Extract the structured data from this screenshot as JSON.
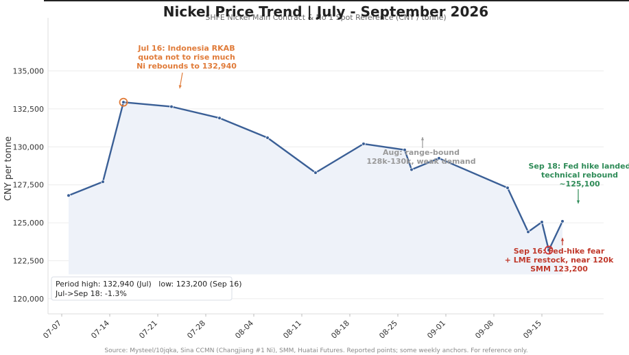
{
  "chart_data": {
    "type": "line",
    "title": "Nickel Price Trend | July - September 2026",
    "subtitle": "SHFE Nickel Main Contract & No 1 Spot Reference (CNY / tonne)",
    "ylabel": "CNY per tonne",
    "xlabel": "",
    "ylim": [
      119000,
      138500
    ],
    "xlim": [
      "2026-07-05",
      "2026-09-24"
    ],
    "yticks": [
      120000,
      122500,
      125000,
      127500,
      130000,
      132500,
      135000
    ],
    "ytick_labels": [
      "120,000",
      "122,500",
      "125,000",
      "127,500",
      "130,000",
      "132,500",
      "135,000"
    ],
    "xticks": [
      "2026-07-07",
      "2026-07-14",
      "2026-07-21",
      "2026-07-28",
      "2026-08-04",
      "2026-08-11",
      "2026-08-18",
      "2026-08-25",
      "2026-09-01",
      "2026-09-08",
      "2026-09-15"
    ],
    "xtick_labels": [
      "07-07",
      "07-14",
      "07-21",
      "07-28",
      "08-04",
      "08-11",
      "08-18",
      "08-25",
      "09-01",
      "09-08",
      "09-15"
    ],
    "series": [
      {
        "x": [
          "2026-07-08",
          "2026-07-13",
          "2026-07-16",
          "2026-07-23",
          "2026-07-30",
          "2026-08-06",
          "2026-08-13",
          "2026-08-20",
          "2026-08-26",
          "2026-08-27",
          "2026-08-31",
          "2026-09-10",
          "2026-09-13",
          "2026-09-15",
          "2026-09-16",
          "2026-09-18"
        ],
        "values": [
          126800,
          127700,
          132940,
          132650,
          131900,
          130600,
          128300,
          130200,
          129800,
          128500,
          129250,
          127300,
          124400,
          125050,
          123200,
          125100
        ]
      }
    ],
    "fill_baseline": 121600,
    "grid": true,
    "colors": {
      "line": "#3a5f96",
      "fill": "#eef2f9",
      "high_marker": "#e07b39",
      "low_marker": "#cc3333",
      "ann_orange": "#e07b39",
      "ann_gray": "#999999",
      "ann_green": "#2e8b57",
      "ann_red": "#c0392b"
    },
    "annotations": [
      {
        "id": "high",
        "lines": [
          "Jul 16: Indonesia RKAB",
          "quota not to rise much",
          "Ni rebounds to 132,940"
        ],
        "x": "2026-07-16",
        "y": 132940,
        "color": "ann_orange"
      },
      {
        "id": "aug",
        "lines": [
          "Aug: range-bound",
          "128k-130k, weak demand"
        ],
        "x": "2026-08-26",
        "y": 129800,
        "color": "ann_gray"
      },
      {
        "id": "sep18",
        "lines": [
          "Sep 18: Fed hike landed",
          "technical rebound",
          "~125,100"
        ],
        "x": "2026-09-18",
        "y": 125100,
        "color": "ann_green"
      },
      {
        "id": "sep16",
        "lines": [
          "Sep 16: Fed-hike fear",
          "+ LME restock, near 120k",
          "SMM 123,200"
        ],
        "x": "2026-09-16",
        "y": 123200,
        "color": "ann_red"
      }
    ]
  },
  "stats_box": {
    "line1": "Period high: 132,940 (Jul)   low: 123,200 (Sep 16)",
    "line2": "Jul->Sep 18: -1.3%"
  },
  "footer": {
    "source": "Source: Mysteel/10jqka, Sina CCMN (Changjiang #1 Ni), SMM, Huatai Futures. Reported points; some weekly anchors. For reference only."
  }
}
